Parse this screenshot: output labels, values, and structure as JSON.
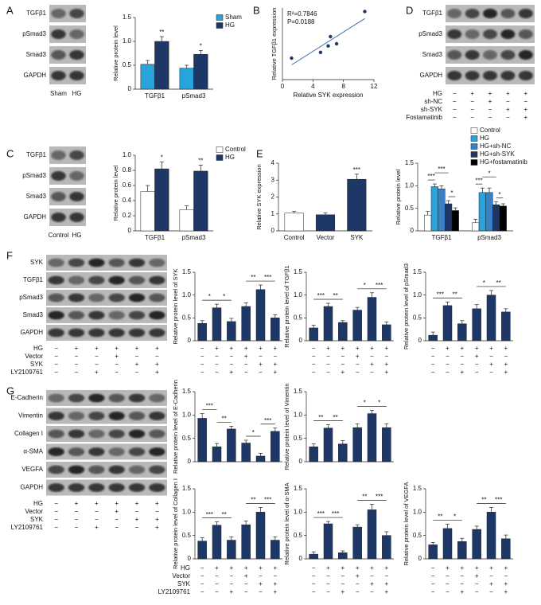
{
  "panel_labels": [
    "A",
    "B",
    "C",
    "D",
    "E",
    "F",
    "G"
  ],
  "blots": [
    {
      "rows": [
        "TGFβ1",
        "pSmad3",
        "Smad3",
        "GAPDH"
      ],
      "lanes": [
        "Sham",
        "HG"
      ]
    },
    {
      "rows": [
        "TGFβ1",
        "pSmad3",
        "Smad3",
        "GAPDH"
      ],
      "conditions": [
        {
          "name": "HG",
          "marks": [
            "−",
            "+",
            "+",
            "+",
            "+"
          ]
        },
        {
          "name": "sh-NC",
          "marks": [
            "−",
            "−",
            "+",
            "−",
            "−"
          ]
        },
        {
          "name": "sh-SYK",
          "marks": [
            "−",
            "−",
            "−",
            "+",
            "+"
          ]
        },
        {
          "name": "Fostamatinib",
          "marks": [
            "−",
            "−",
            "−",
            "−",
            "+"
          ]
        }
      ]
    },
    {
      "rows": [
        "TGFβ1",
        "pSmad3",
        "Smad3",
        "GAPDH"
      ],
      "lanes": [
        "Control",
        "HG"
      ]
    },
    {
      "rows": [
        "SYK",
        "TGFβ1",
        "pSmad3",
        "Smad3",
        "GAPDH"
      ],
      "conditions": [
        {
          "name": "HG",
          "marks": [
            "−",
            "+",
            "+",
            "+",
            "+",
            "+"
          ]
        },
        {
          "name": "Vector",
          "marks": [
            "−",
            "−",
            "−",
            "+",
            "−",
            "−"
          ]
        },
        {
          "name": "SYK",
          "marks": [
            "−",
            "−",
            "−",
            "−",
            "+",
            "+"
          ]
        },
        {
          "name": "LY2109761",
          "marks": [
            "−",
            "−",
            "+",
            "−",
            "−",
            "+"
          ]
        }
      ]
    },
    {
      "rows": [
        "E-Cadherin",
        "Vimentin",
        "Collagen I",
        "α-SMA",
        "VEGFA",
        "GAPDH"
      ],
      "conditions": [
        {
          "name": "HG",
          "marks": [
            "−",
            "+",
            "+",
            "+",
            "+",
            "+"
          ]
        },
        {
          "name": "Vector",
          "marks": [
            "−",
            "−",
            "−",
            "+",
            "−",
            "−"
          ]
        },
        {
          "name": "SYK",
          "marks": [
            "−",
            "−",
            "−",
            "−",
            "+",
            "+"
          ]
        },
        {
          "name": "LY2109761",
          "marks": [
            "−",
            "−",
            "+",
            "−",
            "−",
            "+"
          ]
        }
      ]
    }
  ],
  "chart_data": [
    {
      "type": "bar",
      "ylabel": "Relative protein level",
      "categories": [
        "TGFβ1",
        "pSmad3"
      ],
      "series": [
        {
          "name": "Sham",
          "color": "#29a3dc",
          "values": [
            0.52,
            0.44
          ],
          "errors": [
            0.08,
            0.06
          ]
        },
        {
          "name": "HG",
          "color": "#1d3866",
          "values": [
            1.0,
            0.73
          ],
          "errors": [
            0.1,
            0.08
          ]
        }
      ],
      "ylim": [
        0,
        1.5
      ],
      "yticks": [
        0,
        0.5,
        {
          "value": 1,
          "label": "1.0"
        },
        1.5
      ],
      "annotations": [
        "**",
        "*"
      ]
    },
    {
      "type": "scatter",
      "xlabel": "Relative SYK expression",
      "ylabel": "Relative TGFβ1 expression",
      "x": [
        1.2,
        5.0,
        6.0,
        6.3,
        7.1,
        10.8
      ],
      "values": [
        3.0,
        3.8,
        4.7,
        6.0,
        5.0,
        9.5
      ],
      "color": "#1d3866",
      "xlim": [
        0,
        12
      ],
      "xticks": [
        0,
        4,
        8,
        12
      ],
      "ylim": [
        0,
        10
      ],
      "annotations": [
        "R²=0.7846",
        "P=0.0188"
      ]
    },
    {
      "type": "bar",
      "ylabel": "Relative protein level",
      "categories": [
        "TGFβ1",
        "pSmad3"
      ],
      "series": [
        {
          "name": "Control",
          "color": "#ffffff",
          "values": [
            0.52,
            0.28
          ],
          "errors": [
            0.08,
            0.05
          ]
        },
        {
          "name": "HG",
          "color": "#1d3866",
          "values": [
            0.82,
            0.79
          ],
          "errors": [
            0.09,
            0.08
          ]
        }
      ],
      "ylim": [
        0,
        1.0
      ],
      "yticks": [
        0,
        0.2,
        0.4,
        0.6,
        0.8,
        {
          "value": 1,
          "label": "1.0"
        }
      ],
      "annotations": [
        "*",
        "**"
      ]
    },
    {
      "type": "bar",
      "ylabel": "Relative SYK expression",
      "categories": [
        "Control",
        "Vector",
        "SYK"
      ],
      "values": [
        1.05,
        0.95,
        3.05
      ],
      "errors": [
        0.1,
        0.12,
        0.3
      ],
      "colors": [
        "#ffffff",
        "#1d3866",
        "#1d3866"
      ],
      "ylim": [
        0,
        4
      ],
      "yticks": [
        0,
        1,
        2,
        3,
        4
      ],
      "annotations": [
        "***"
      ]
    },
    {
      "type": "bar",
      "ylabel": "Relative protein level",
      "categories": [
        "TGFβ1",
        "pSmad3"
      ],
      "series": [
        {
          "name": "Control",
          "color": "#ffffff",
          "values": [
            0.35,
            0.18
          ],
          "errors": [
            0.08,
            0.08
          ]
        },
        {
          "name": "HG",
          "color": "#29a3dc",
          "values": [
            0.98,
            0.85
          ],
          "errors": [
            0.06,
            0.1
          ]
        },
        {
          "name": "HG+sh-NC",
          "color": "#3b7fc4",
          "values": [
            0.93,
            0.85
          ],
          "errors": [
            0.07,
            0.1
          ]
        },
        {
          "name": "HG+sh-SYK",
          "color": "#1d3866",
          "values": [
            0.6,
            0.58
          ],
          "errors": [
            0.07,
            0.06
          ]
        },
        {
          "name": "HG+fostamatinib",
          "color": "#000000",
          "values": [
            0.45,
            0.55
          ],
          "errors": [
            0.06,
            0.05
          ]
        }
      ],
      "ylim": [
        0,
        1.5
      ],
      "yticks": [
        0,
        0.5,
        {
          "value": 1,
          "label": "1.0"
        },
        1.5
      ],
      "annotations": [
        "***",
        "***",
        "*",
        "***",
        "*",
        "*"
      ]
    },
    {
      "type": "bar",
      "ylabel": "Relative protein level of SYK",
      "values": [
        0.38,
        0.72,
        0.42,
        0.75,
        1.12,
        0.5
      ],
      "errors": [
        0.06,
        0.08,
        0.07,
        0.08,
        0.1,
        0.07
      ],
      "color": "#1d3866",
      "ylim": [
        0,
        1.5
      ],
      "yticks": [
        0,
        0.5,
        {
          "value": 1,
          "label": "1.0"
        },
        1.5
      ],
      "annotations": [
        "*",
        "*",
        "**",
        "***"
      ]
    },
    {
      "type": "bar",
      "ylabel": "Relative protein level of TGFβ1",
      "values": [
        0.28,
        0.75,
        0.4,
        0.67,
        0.95,
        0.35
      ],
      "errors": [
        0.06,
        0.07,
        0.04,
        0.06,
        0.1,
        0.06
      ],
      "color": "#1d3866",
      "ylim": [
        0,
        1.5
      ],
      "yticks": [
        0,
        0.5,
        {
          "value": 1,
          "label": "1.0"
        },
        1.5
      ],
      "annotations": [
        "***",
        "**",
        "*",
        "***"
      ]
    },
    {
      "type": "bar",
      "ylabel": "Relative protein level of pSmad3",
      "values": [
        0.12,
        0.77,
        0.37,
        0.7,
        1.0,
        0.63
      ],
      "errors": [
        0.07,
        0.08,
        0.07,
        0.09,
        0.1,
        0.07
      ],
      "color": "#1d3866",
      "ylim": [
        0,
        1.5
      ],
      "yticks": [
        0,
        0.5,
        {
          "value": 1,
          "label": "1.0"
        },
        1.5
      ],
      "annotations": [
        "***",
        "**",
        "*",
        "**"
      ]
    },
    {
      "type": "bar",
      "ylabel": "Relative protein level of E-Cadherin",
      "values": [
        0.93,
        0.32,
        0.7,
        0.4,
        0.12,
        0.65
      ],
      "errors": [
        0.1,
        0.07,
        0.06,
        0.06,
        0.06,
        0.07
      ],
      "color": "#1d3866",
      "ylim": [
        0,
        1.5
      ],
      "yticks": [
        0,
        0.5,
        {
          "value": 1,
          "label": "1.0"
        },
        1.5
      ],
      "annotations": [
        "***",
        "**",
        "*",
        "***"
      ]
    },
    {
      "type": "bar",
      "ylabel": "Relative protein level of Vimentin",
      "values": [
        0.32,
        0.72,
        0.38,
        0.73,
        1.03,
        0.73
      ],
      "errors": [
        0.06,
        0.07,
        0.07,
        0.08,
        0.07,
        0.08
      ],
      "color": "#1d3866",
      "ylim": [
        0,
        1.5
      ],
      "yticks": [
        0,
        0.5,
        {
          "value": 1,
          "label": "1.0"
        },
        1.5
      ],
      "annotations": [
        "**",
        "**",
        "*",
        "*"
      ]
    },
    {
      "type": "bar",
      "ylabel": "Relative protein level of Collagen I",
      "values": [
        0.38,
        0.72,
        0.4,
        0.73,
        1.0,
        0.4
      ],
      "errors": [
        0.07,
        0.07,
        0.07,
        0.08,
        0.1,
        0.07
      ],
      "color": "#1d3866",
      "ylim": [
        0,
        1.5
      ],
      "yticks": [
        0,
        0.5,
        {
          "value": 1,
          "label": "1.0"
        },
        1.5
      ],
      "annotations": [
        "***",
        "**",
        "**",
        "***"
      ]
    },
    {
      "type": "bar",
      "ylabel": "Relative protein level of α-SMA",
      "values": [
        0.1,
        0.75,
        0.13,
        0.68,
        1.05,
        0.5
      ],
      "errors": [
        0.05,
        0.05,
        0.04,
        0.05,
        0.12,
        0.08
      ],
      "color": "#1d3866",
      "ylim": [
        0,
        1.5
      ],
      "yticks": [
        0,
        0.5,
        {
          "value": 1,
          "label": "1.0"
        },
        1.5
      ],
      "annotations": [
        "***",
        "***",
        "**",
        "***"
      ]
    },
    {
      "type": "bar",
      "ylabel": "Relative protein level of VEGFA",
      "values": [
        0.3,
        0.65,
        0.37,
        0.63,
        1.0,
        0.43
      ],
      "errors": [
        0.05,
        0.09,
        0.07,
        0.07,
        0.1,
        0.08
      ],
      "color": "#1d3866",
      "ylim": [
        0,
        1.5
      ],
      "yticks": [
        0,
        0.5,
        {
          "value": 1,
          "label": "1.0"
        },
        1.5
      ],
      "annotations": [
        "**",
        "*",
        "**",
        "***"
      ]
    }
  ]
}
